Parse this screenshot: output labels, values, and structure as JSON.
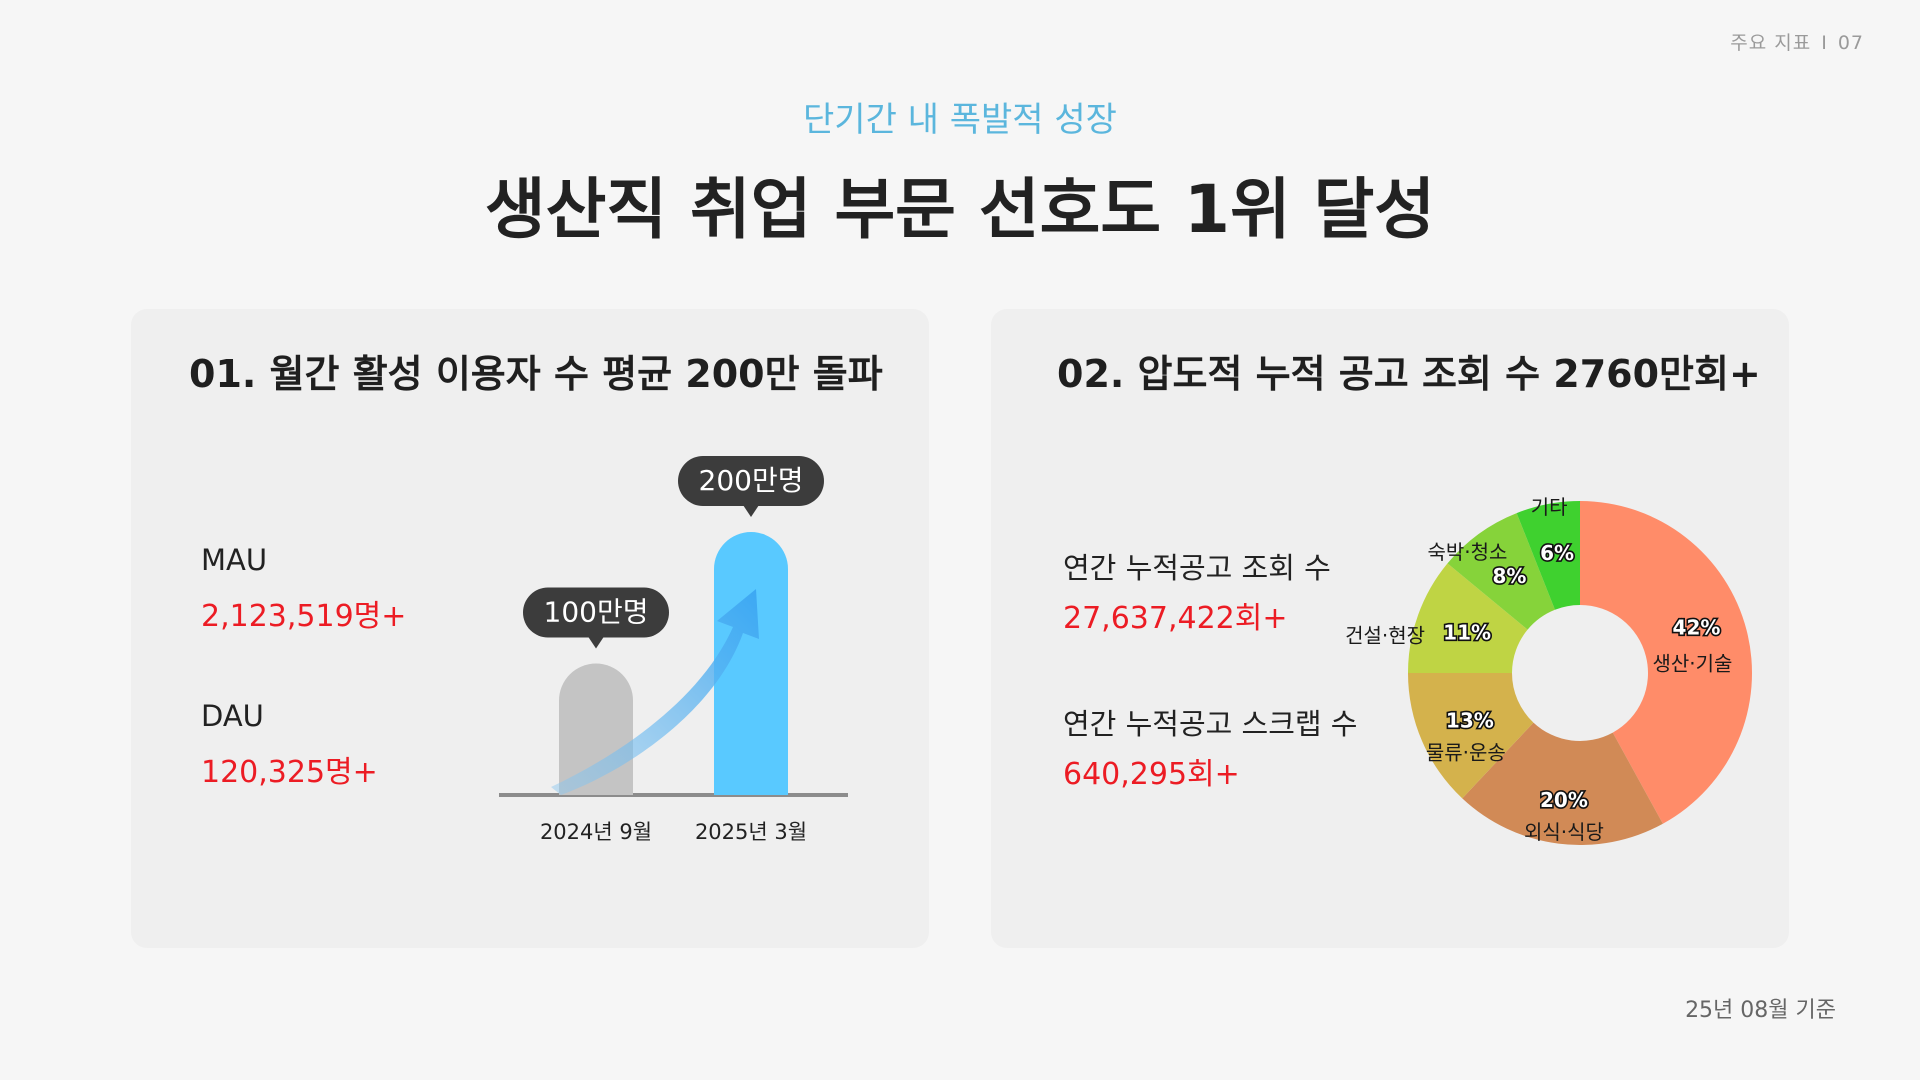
{
  "page_meta": {
    "section": "주요 지표",
    "separator": "I",
    "number": "07"
  },
  "header": {
    "subtitle": "단기간 내 폭발적 성장",
    "title": "생산직 취업 부문 선호도 1위 달성"
  },
  "card1": {
    "title": "01. 월간 활성 이용자 수 평균 200만 돌파",
    "mau_label": "MAU",
    "mau_value": "2,123,519명+",
    "dau_label": "DAU",
    "dau_value": "120,325명+"
  },
  "card2": {
    "title": "02. 압도적 누적 공고 조회 수 2760만회+",
    "views_label": "연간 누적공고 조회 수",
    "views_value": "27,637,422회+",
    "scraps_label": "연간 누적공고 스크랩 수",
    "scraps_value": "640,295회+"
  },
  "footnote": "25년 08월 기준",
  "colors": {
    "accent": "#5bb6dd",
    "highlight": "#ec1c24",
    "bar_past": "#c4c4c4",
    "bar_current": "#59c9ff"
  },
  "chart_data": [
    {
      "type": "bar",
      "categories": [
        "2024년 9월",
        "2025년 3월"
      ],
      "values": [
        100,
        200
      ],
      "value_labels": [
        "100만명",
        "200만명"
      ],
      "unit": "만명",
      "colors": [
        "#c4c4c4",
        "#59c9ff"
      ],
      "annotation": "growth-arrow"
    },
    {
      "type": "pie",
      "style": "donut",
      "slices": [
        {
          "label": "생산·기술",
          "value": 42,
          "color": "#ff8c69"
        },
        {
          "label": "외식·식당",
          "value": 20,
          "color": "#d18a56"
        },
        {
          "label": "물류·운송",
          "value": 13,
          "color": "#d4b24c"
        },
        {
          "label": "건설·현장",
          "value": 11,
          "color": "#bfd444"
        },
        {
          "label": "숙박·청소",
          "value": 8,
          "color": "#86d33a"
        },
        {
          "label": "기타",
          "value": 6,
          "color": "#3fd12f"
        }
      ]
    }
  ]
}
